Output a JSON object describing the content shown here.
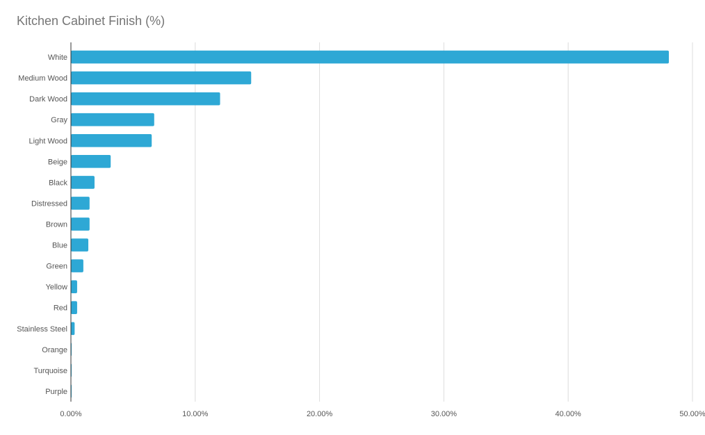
{
  "chart_data": {
    "type": "bar",
    "orientation": "horizontal",
    "title": "Kitchen Cabinet Finish (%)",
    "categories": [
      "White",
      "Medium Wood",
      "Dark Wood",
      "Gray",
      "Light Wood",
      "Beige",
      "Black",
      "Distressed",
      "Brown",
      "Blue",
      "Green",
      "Yellow",
      "Red",
      "Stainless Steel",
      "Orange",
      "Turquoise",
      "Purple"
    ],
    "values": [
      48.1,
      14.5,
      12.0,
      6.7,
      6.5,
      3.2,
      1.9,
      1.5,
      1.5,
      1.4,
      1.0,
      0.5,
      0.5,
      0.3,
      0.05,
      0.05,
      0.05
    ],
    "xlim": [
      0,
      50
    ],
    "xticks": [
      "0.00%",
      "10.00%",
      "20.00%",
      "30.00%",
      "40.00%",
      "50.00%"
    ],
    "grid": true,
    "legend": "none",
    "bar_color": "#2ea8d5",
    "grid_color": "#dcdcdc",
    "axis_color": "#333333"
  }
}
